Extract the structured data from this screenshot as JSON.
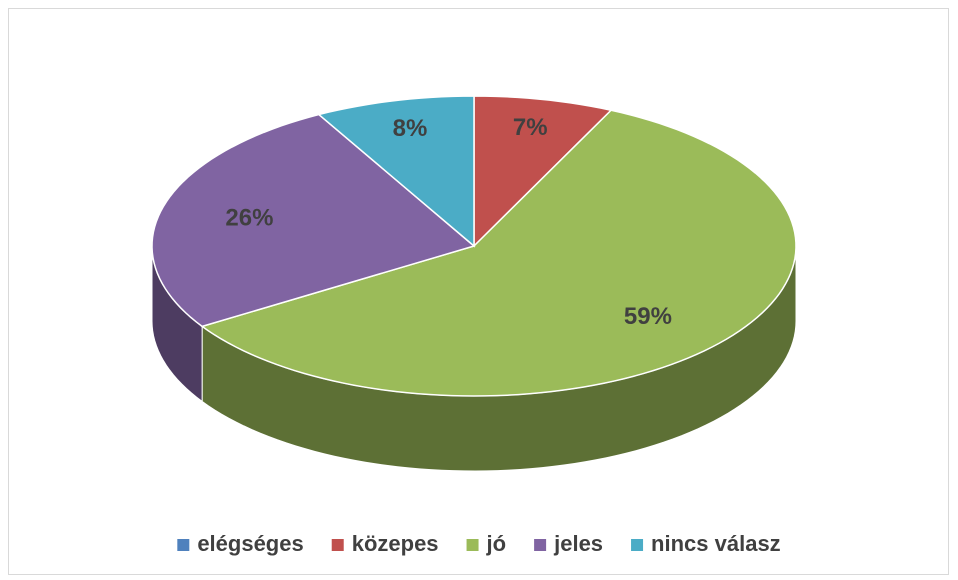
{
  "chart_data": {
    "type": "pie",
    "categories": [
      "elégséges",
      "közepes",
      "jó",
      "jeles",
      "nincs válasz"
    ],
    "values": [
      0,
      7,
      59,
      26,
      8
    ],
    "value_labels": [
      null,
      "7%",
      "59%",
      "26%",
      "8%"
    ],
    "colors": [
      "#4F81BD",
      "#C0504D",
      "#9BBB59",
      "#8064A2",
      "#4BACC6"
    ],
    "legend": "bottom"
  }
}
